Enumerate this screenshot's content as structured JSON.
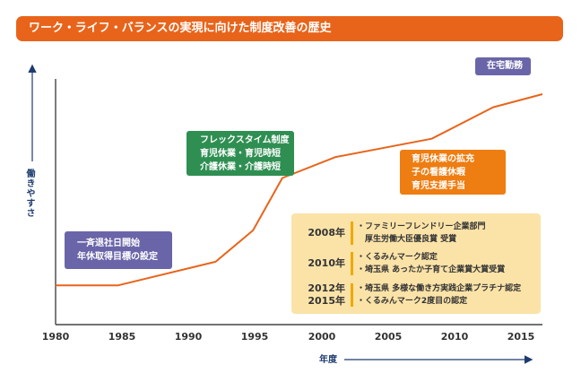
{
  "title": "ワーク・ライフ・バランスの実現に向けた制度改善の歴史",
  "colors": {
    "accent": "#e8641b",
    "axis": "#1d3b6f",
    "purple": "#6a65a8",
    "green": "#2f8f52",
    "orange": "#ee7d12",
    "note_bg": "#fbe3a8",
    "note_bar": "#f0a800"
  },
  "chart_data": {
    "type": "line",
    "title": "ワーク・ライフ・バランスの実現に向けた制度改善の歴史",
    "xlabel": "年度",
    "ylabel": "働きやすさ",
    "xlim": [
      1980,
      2016.5
    ],
    "ylim": [
      0,
      10
    ],
    "x_ticks": [
      "1980",
      "1985",
      "1990",
      "1995",
      "2000",
      "2005",
      "2010",
      "2015"
    ],
    "series": [
      {
        "x": [
          1980,
          1984.7,
          1992,
          1994.8,
          1997,
          2001,
          2008.2,
          2012.8,
          2016.5
        ],
        "y": [
          1.5,
          1.5,
          2.4,
          3.6,
          5.6,
          6.4,
          7.1,
          8.3,
          8.8
        ]
      }
    ],
    "annotations": [
      {
        "lines": [
          "一斉退社日開始",
          "年休取得目標の設定"
        ],
        "color": "purple"
      },
      {
        "lines": [
          "フレックスタイム制度",
          "育児休業・育児時短",
          "介護休業・介護時短"
        ],
        "color": "green"
      },
      {
        "lines": [
          "育児休業の拡充",
          "子の看護休暇",
          "育児支援手当"
        ],
        "color": "orange"
      },
      {
        "lines": [
          "在宅勤務"
        ],
        "color": "purple"
      }
    ],
    "awards": [
      {
        "years": [
          "2008年"
        ],
        "items": [
          "・ファミリーフレンドリー企業部門",
          "　厚生労働大臣優良賞  受賞"
        ]
      },
      {
        "years": [
          "2010年"
        ],
        "items": [
          "・くるみんマーク認定",
          "・埼玉県  あったか子育て企業賞大賞受賞"
        ]
      },
      {
        "years": [
          "2012年",
          "2015年"
        ],
        "items": [
          "・埼玉県  多様な働き方実践企業プラチナ認定",
          "・くるみんマーク2度目の認定"
        ]
      }
    ]
  }
}
